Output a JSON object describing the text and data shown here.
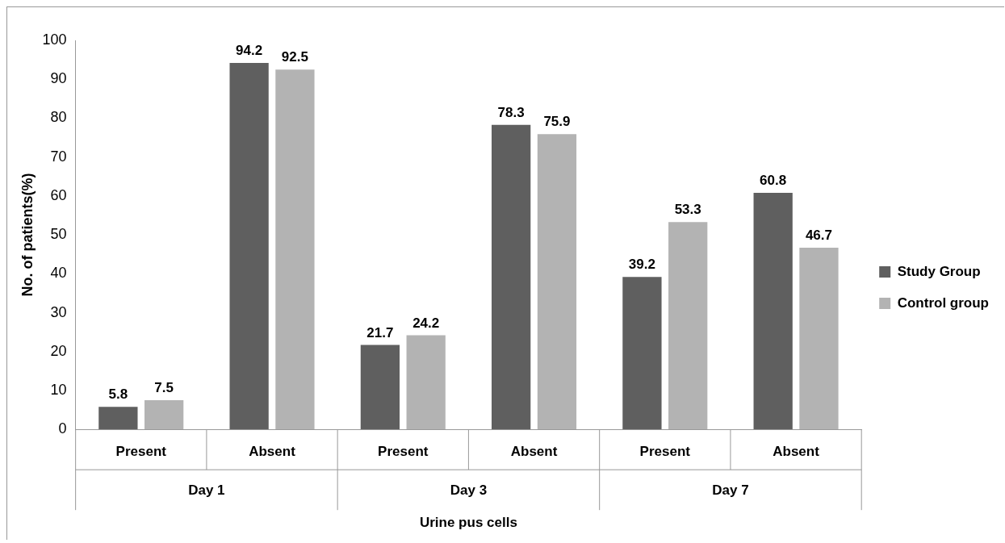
{
  "chart_data": {
    "type": "bar",
    "xlabel": "Urine pus cells",
    "ylabel": "No. of patients(%)",
    "categories": [
      "Present",
      "Absent",
      "Present",
      "Absent",
      "Present",
      "Absent"
    ],
    "series": [
      {
        "name": "Study Group",
        "color": "#5f5f5f",
        "values": [
          5.8,
          94.2,
          21.7,
          78.3,
          39.2,
          60.8
        ]
      },
      {
        "name": "Control group",
        "color": "#b3b3b3",
        "values": [
          7.5,
          92.5,
          24.2,
          75.9,
          53.3,
          46.7
        ]
      }
    ],
    "annotations": [
      "Day 1",
      "Day 3",
      "Day 7"
    ],
    "ylim": [
      0,
      100
    ],
    "yticks": [
      0,
      10,
      20,
      30,
      40,
      50,
      60,
      70,
      80,
      90,
      100
    ],
    "grid": false,
    "legend": "right",
    "data_labels": true
  }
}
